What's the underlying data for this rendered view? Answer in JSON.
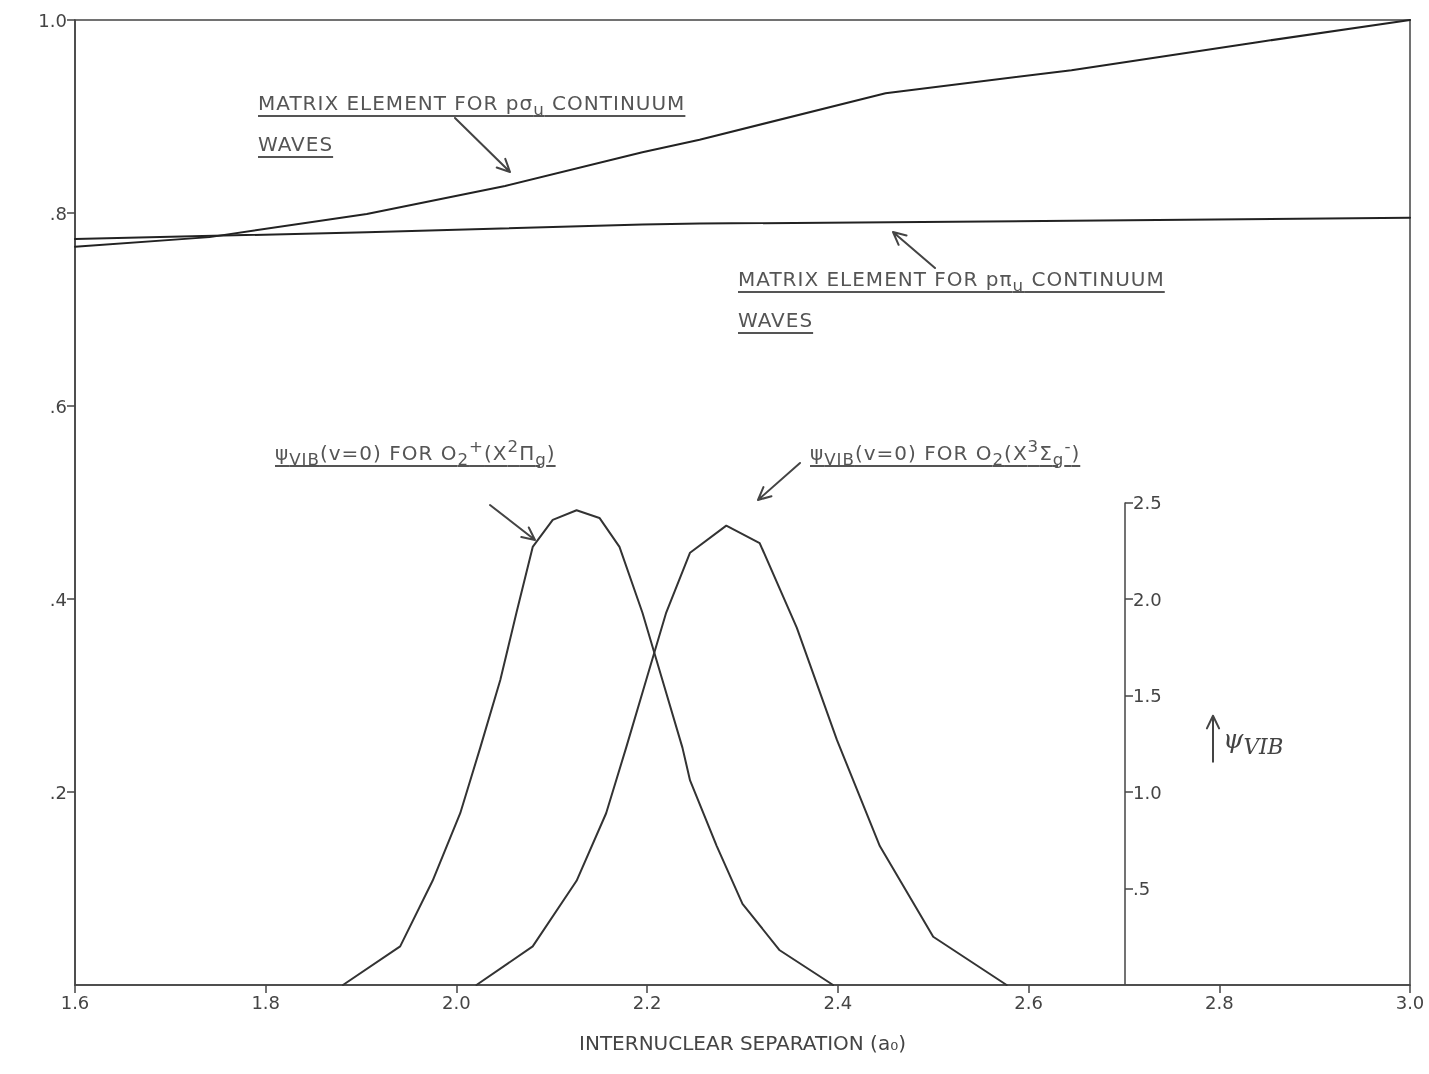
{
  "chart_data": {
    "type": "line",
    "xlabel": "INTERNUCLEAR SEPARATION (a₀)",
    "y2label": "ψ$_{VIB}$",
    "xlim": [
      1.6,
      3.0
    ],
    "xticks": [
      1.6,
      1.8,
      {
        "value": 2.0,
        "label": "2.0"
      },
      2.2,
      2.4,
      2.6,
      2.8,
      {
        "value": 3.0,
        "label": "3.0"
      }
    ],
    "ylim": [
      0,
      1.0
    ],
    "yticks": [
      {
        "value": 0.2,
        "label": ".2"
      },
      {
        "value": 0.4,
        "label": ".4"
      },
      {
        "value": 0.6,
        "label": ".6"
      },
      {
        "value": 0.8,
        "label": ".8"
      },
      {
        "value": 1.0,
        "label": "1.0"
      }
    ],
    "y2lim": [
      0,
      5
    ],
    "y2ticks": [
      {
        "value": 0.5,
        "label": ".5"
      },
      {
        "value": 1.0,
        "label": "1.0"
      },
      1.5,
      {
        "value": 2.0,
        "label": "2.0"
      },
      2.5
    ],
    "grid": false,
    "marker": "none",
    "line_style": "solid",
    "series": [
      {
        "color": "#222222",
        "x": [
          1.6,
          1.741,
          1.906,
          2.051,
          2.195,
          2.255,
          2.45,
          2.645,
          2.84,
          3.0
        ],
        "values": [
          0.765,
          0.775,
          0.799,
          0.828,
          0.863,
          0.876,
          0.924,
          0.948,
          0.977,
          1.0
        ]
      },
      {
        "color": "#222222",
        "x": [
          1.6,
          1.906,
          2.195,
          2.255,
          2.645,
          3.0
        ],
        "values": [
          0.773,
          0.78,
          0.788,
          0.789,
          0.792,
          0.795
        ]
      },
      {
        "color": "#333333",
        "axis": "y2",
        "x": [
          1.881,
          1.941,
          1.975,
          2.004,
          2.025,
          2.046,
          2.063,
          2.08,
          2.101,
          2.126,
          2.15,
          2.171,
          2.195,
          2.216,
          2.237,
          2.245,
          2.273,
          2.3,
          2.339,
          2.395
        ],
        "values": [
          0,
          0.2,
          0.54,
          0.89,
          1.23,
          1.58,
          1.93,
          2.27,
          2.41,
          2.46,
          2.42,
          2.27,
          1.93,
          1.58,
          1.23,
          1.06,
          0.72,
          0.42,
          0.18,
          0
        ]
      },
      {
        "color": "#333333",
        "axis": "y2",
        "x": [
          2.021,
          2.08,
          2.126,
          2.157,
          2.178,
          2.199,
          2.22,
          2.245,
          2.283,
          2.318,
          2.357,
          2.399,
          2.444,
          2.5,
          2.577
        ],
        "values": [
          0,
          0.2,
          0.54,
          0.89,
          1.23,
          1.58,
          1.93,
          2.24,
          2.38,
          2.29,
          1.85,
          1.27,
          0.72,
          0.25,
          0
        ]
      }
    ],
    "annotations": [
      "MATRIX ELEMENT FOR pσ$_{u}$ CONTINUUM WAVES",
      "MATRIX ELEMENT FOR pπ$_{u}$ CONTINUUM WAVES",
      "ψ$_{VIB}$(v=0) FOR O$_{2}$$^{+}$(X$^{2}$Π$_{g}$)",
      "ψ$_{VIB}$(v=0) FOR O$_{2}$(X$^{3}$Σ$_{g}$$^{-}$)"
    ]
  }
}
